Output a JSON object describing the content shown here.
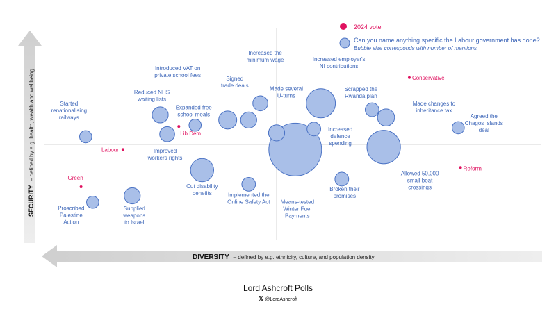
{
  "colors": {
    "bubble_fill": "#a9bfe8",
    "bubble_stroke": "#4a72c4",
    "bubble_text": "#3d66b8",
    "party": "#e0115f",
    "arrow_fill": "#d9d9d9",
    "gridline": "#d6d6d6"
  },
  "chart_data": {
    "type": "scatter",
    "x_axis": {
      "range": [
        -1,
        1
      ],
      "label": "DIVERSITY",
      "description": "– defined by e.g. ethnicity, culture, and population density"
    },
    "y_axis": {
      "range": [
        -1,
        1
      ],
      "label": "SECURITY",
      "description": "– defined by e.g. health, wealth and wellbeing"
    },
    "grid": false,
    "legend": {
      "placement": "top-right",
      "entries": [
        {
          "marker": "dot",
          "label": "2024 vote"
        },
        {
          "marker": "bubble",
          "label": "Can you name anything specific the Labour government has done?",
          "sublabel": "Bubble size corresponds with number of mentions"
        }
      ]
    },
    "parties": [
      {
        "label": "Green",
        "x": -0.84,
        "y": -0.33
      },
      {
        "label": "Labour",
        "x": -0.66,
        "y": -0.04
      },
      {
        "label": "Lib Dem",
        "x": -0.42,
        "y": 0.14
      },
      {
        "label": "Conservative",
        "x": 0.57,
        "y": 0.52
      },
      {
        "label": "Reform",
        "x": 0.79,
        "y": -0.18
      }
    ],
    "bubbles": [
      {
        "label": "Started renationalising railways",
        "x": -0.82,
        "y": 0.06,
        "size": 2
      },
      {
        "label": "Reduced NHS waiting lists",
        "x": -0.5,
        "y": 0.23,
        "size": 5
      },
      {
        "label": "Improved workers rights",
        "x": -0.47,
        "y": 0.08,
        "size": 4
      },
      {
        "label": "Expanded free school meals",
        "x": -0.35,
        "y": 0.15,
        "size": 2
      },
      {
        "label": "Introduced VAT on private school fees",
        "x": -0.21,
        "y": 0.19,
        "size": 7
      },
      {
        "label": "Signed trade deals",
        "x": -0.12,
        "y": 0.19,
        "size": 5
      },
      {
        "label": "Increased the minimum wage",
        "x": -0.07,
        "y": 0.32,
        "size": 4
      },
      {
        "label": "Made several U-turns",
        "x": 0.0,
        "y": 0.09,
        "size": 5
      },
      {
        "label": "Means-tested Winter Fuel Payments",
        "x": 0.08,
        "y": -0.04,
        "size": 100
      },
      {
        "label": "Increased employer's NI contributions",
        "x": 0.19,
        "y": 0.32,
        "size": 25
      },
      {
        "label": "Increased defence spending",
        "x": 0.16,
        "y": 0.12,
        "size": 3
      },
      {
        "label": "Scrapped the Rwanda plan",
        "x": 0.41,
        "y": 0.27,
        "size": 3
      },
      {
        "label": "Made changes to inheritance tax",
        "x": 0.47,
        "y": 0.21,
        "size": 6
      },
      {
        "label": "Allowed 50,000 small boat crossings",
        "x": 0.46,
        "y": -0.02,
        "size": 35
      },
      {
        "label": "Agreed the Chagos Islands deal",
        "x": 0.78,
        "y": 0.13,
        "size": 2
      },
      {
        "label": "Broken their promises",
        "x": 0.28,
        "y": -0.27,
        "size": 3
      },
      {
        "label": "Implemented the Online Safety Act",
        "x": -0.12,
        "y": -0.31,
        "size": 3
      },
      {
        "label": "Cut disability benefits",
        "x": -0.32,
        "y": -0.2,
        "size": 14
      },
      {
        "label": "Supplied weapons to Israel",
        "x": -0.62,
        "y": -0.4,
        "size": 5
      },
      {
        "label": "Proscribed Palestine Action",
        "x": -0.79,
        "y": -0.45,
        "size": 2
      }
    ]
  },
  "footer": {
    "title": "Lord Ashcroft Polls",
    "x_icon": "x-logo",
    "handle": "@LordAshcroft"
  }
}
